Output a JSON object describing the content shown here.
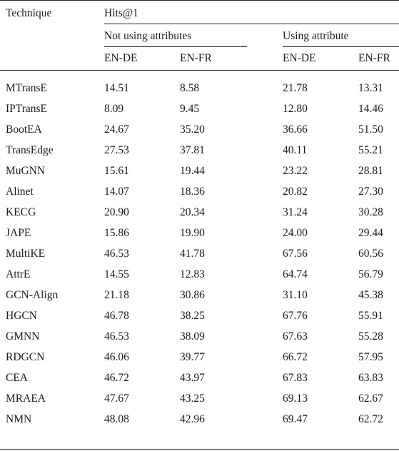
{
  "table": {
    "header": {
      "technique": "Technique",
      "metric": "Hits@1",
      "group_not_using": "Not using attributes",
      "group_using": "Using attribute",
      "subcols": [
        "EN-DE",
        "EN-FR",
        "EN-DE",
        "EN-FR"
      ]
    },
    "rows": [
      {
        "name": "MTransE",
        "values": [
          "14.51",
          "8.58",
          "21.78",
          "13.31"
        ]
      },
      {
        "name": "IPTransE",
        "values": [
          "8.09",
          "9.45",
          "12.80",
          "14.46"
        ]
      },
      {
        "name": "BootEA",
        "values": [
          "24.67",
          "35.20",
          "36.66",
          "51.50"
        ]
      },
      {
        "name": "TransEdge",
        "values": [
          "27.53",
          "37.81",
          "40.11",
          "55.21"
        ]
      },
      {
        "name": "MuGNN",
        "values": [
          "15.61",
          "19.44",
          "23.22",
          "28.81"
        ]
      },
      {
        "name": "Alinet",
        "values": [
          "14.07",
          "18.36",
          "20.82",
          "27.30"
        ]
      },
      {
        "name": "KECG",
        "values": [
          "20.90",
          "20.34",
          "31.24",
          "30.28"
        ]
      },
      {
        "name": "JAPE",
        "values": [
          "15.86",
          "19.90",
          "24.00",
          "29.44"
        ]
      },
      {
        "name": "MultiKE",
        "values": [
          "46.53",
          "41.78",
          "67.56",
          "60.56"
        ]
      },
      {
        "name": "AttrE",
        "values": [
          "14.55",
          "12.83",
          "64.74",
          "56.79"
        ]
      },
      {
        "name": "GCN-Align",
        "values": [
          "21.18",
          "30.86",
          "31.10",
          "45.38"
        ]
      },
      {
        "name": "HGCN",
        "values": [
          "46.78",
          "38.25",
          "67.76",
          "55.91"
        ]
      },
      {
        "name": "GMNN",
        "values": [
          "46.53",
          "38.09",
          "67.63",
          "55.28"
        ]
      },
      {
        "name": "RDGCN",
        "values": [
          "46.06",
          "39.77",
          "66.72",
          "57.95"
        ]
      },
      {
        "name": "CEA",
        "values": [
          "46.72",
          "43.97",
          "67.83",
          "63.83"
        ]
      },
      {
        "name": "MRAEA",
        "values": [
          "47.67",
          "43.25",
          "69.13",
          "62.67"
        ]
      },
      {
        "name": "NMN",
        "values": [
          "48.08",
          "42.96",
          "69.47",
          "62.72"
        ]
      }
    ]
  }
}
